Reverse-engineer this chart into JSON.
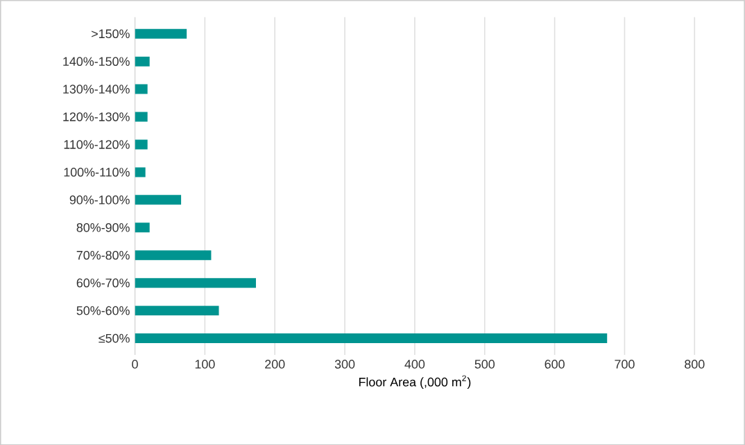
{
  "chart_data": {
    "type": "bar",
    "orientation": "horizontal",
    "xlabel": "Floor Area (,000 m$^{2}$)",
    "categories": [
      ">150%",
      "140%-150%",
      "130%-140%",
      "120%-130%",
      "110%-120%",
      "100%-110%",
      "90%-100%",
      "80%-90%",
      "70%-80%",
      "60%-70%",
      "50%-60%",
      "≤50%"
    ],
    "values": [
      74,
      21,
      18,
      18,
      18,
      15,
      66,
      21,
      109,
      173,
      120,
      675
    ],
    "color": "#009490",
    "xlim": [
      0,
      800
    ],
    "xticks": [
      0,
      100,
      200,
      300,
      400,
      500,
      600,
      700,
      800
    ],
    "grid": "x"
  }
}
